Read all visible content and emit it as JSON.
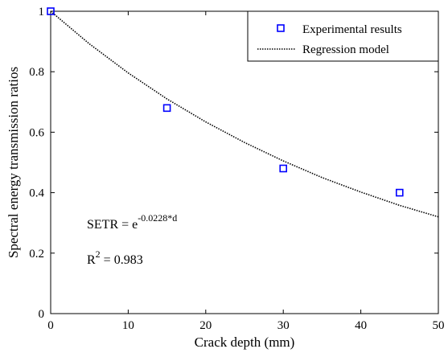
{
  "chart_data": {
    "type": "scatter",
    "xlabel": "Crack depth (mm)",
    "ylabel": "Spectral energy transmission ratios",
    "xlim": [
      0,
      50
    ],
    "ylim": [
      0,
      1
    ],
    "xticks": [
      "0",
      "10",
      "20",
      "30",
      "40",
      "50"
    ],
    "yticks": [
      "0",
      "0.2",
      "0.4",
      "0.6",
      "0.8",
      "1"
    ],
    "grid": false,
    "legend_position": "top-right",
    "series": [
      {
        "name": "Experimental results",
        "kind": "scatter",
        "marker": "square",
        "color": "#0000ff",
        "x": [
          0,
          15,
          30,
          45
        ],
        "y": [
          1.0,
          0.68,
          0.48,
          0.4
        ]
      },
      {
        "name": "Regression model",
        "kind": "line",
        "style": "dotted",
        "color": "#000000",
        "coefficient": -0.0228,
        "x": [
          0,
          5,
          10,
          15,
          20,
          25,
          30,
          35,
          40,
          45,
          50
        ],
        "y": [
          1.0,
          0.892,
          0.796,
          0.71,
          0.634,
          0.566,
          0.505,
          0.45,
          0.402,
          0.358,
          0.32
        ]
      }
    ],
    "annotations": {
      "equation_base": "SETR = e",
      "equation_exponent": "-0.0228*d",
      "r2_base": "R",
      "r2_exponent": "2",
      "r2_rest": " = 0.983"
    }
  }
}
